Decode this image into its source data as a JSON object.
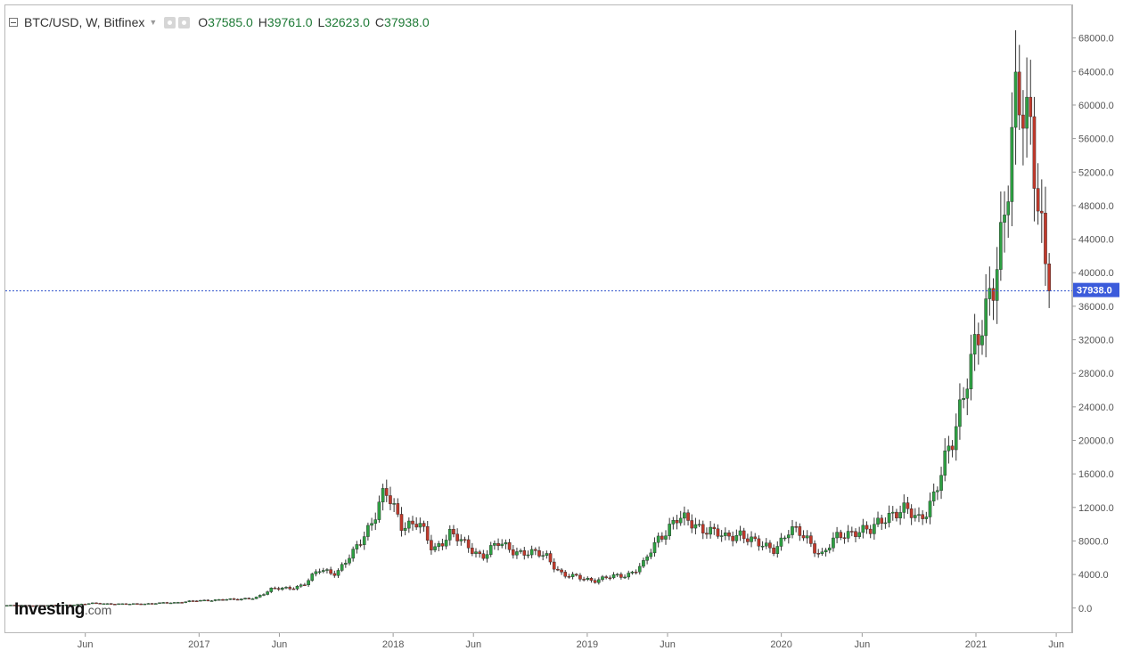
{
  "legend": {
    "symbol": "BTC/USD, W, Bitfinex",
    "open_label": "O",
    "open": "37585.0",
    "high_label": "H",
    "high": "39761.0",
    "low_label": "L",
    "low": "32623.0",
    "close_label": "C",
    "close": "37938.0"
  },
  "logo": {
    "main": "Investing",
    "sub": ".com"
  },
  "colors": {
    "up": "#2ea043",
    "down": "#c0392b",
    "wick": "#333333",
    "last_price_line": "#3355cc",
    "last_price_bg": "#3b5bdb"
  },
  "chart_data": {
    "type": "candlestick",
    "interval": "W",
    "title": "",
    "xlabel": "",
    "ylabel": "",
    "ylim": [
      -3000,
      72000
    ],
    "y_ticks": [
      "68000.0",
      "64000.0",
      "60000.0",
      "56000.0",
      "52000.0",
      "48000.0",
      "44000.0",
      "40000.0",
      "36000.0",
      "32000.0",
      "28000.0",
      "24000.0",
      "20000.0",
      "16000.0",
      "12000.0",
      "8000.0",
      "4000.0",
      "0.0"
    ],
    "x_ticks": [
      "Jun",
      "2017",
      "Jun",
      "2018",
      "Jun",
      "2019",
      "Jun",
      "2020",
      "Jun",
      "2021",
      "Jun"
    ],
    "grid": false,
    "last_price": "37938.0",
    "monthly_closes": [
      {
        "date": "2016-02",
        "close": 420
      },
      {
        "date": "2016-03",
        "close": 415
      },
      {
        "date": "2016-04",
        "close": 450
      },
      {
        "date": "2016-05",
        "close": 530
      },
      {
        "date": "2016-06",
        "close": 670
      },
      {
        "date": "2016-07",
        "close": 620
      },
      {
        "date": "2016-08",
        "close": 575
      },
      {
        "date": "2016-09",
        "close": 610
      },
      {
        "date": "2016-10",
        "close": 700
      },
      {
        "date": "2016-11",
        "close": 740
      },
      {
        "date": "2016-12",
        "close": 960
      },
      {
        "date": "2017-01",
        "close": 970
      },
      {
        "date": "2017-02",
        "close": 1190
      },
      {
        "date": "2017-03",
        "close": 1080
      },
      {
        "date": "2017-04",
        "close": 1350
      },
      {
        "date": "2017-05",
        "close": 2300
      },
      {
        "date": "2017-06",
        "close": 2480
      },
      {
        "date": "2017-07",
        "close": 2870
      },
      {
        "date": "2017-08",
        "close": 4700
      },
      {
        "date": "2017-09",
        "close": 4340
      },
      {
        "date": "2017-10",
        "close": 6450
      },
      {
        "date": "2017-11",
        "close": 10000
      },
      {
        "date": "2017-12",
        "close": 13800
      },
      {
        "date": "2018-01",
        "close": 10200
      },
      {
        "date": "2018-02",
        "close": 10300
      },
      {
        "date": "2018-03",
        "close": 6900
      },
      {
        "date": "2018-04",
        "close": 9200
      },
      {
        "date": "2018-05",
        "close": 7500
      },
      {
        "date": "2018-06",
        "close": 6400
      },
      {
        "date": "2018-07",
        "close": 7700
      },
      {
        "date": "2018-08",
        "close": 7000
      },
      {
        "date": "2018-09",
        "close": 6600
      },
      {
        "date": "2018-10",
        "close": 6300
      },
      {
        "date": "2018-11",
        "close": 4000
      },
      {
        "date": "2018-12",
        "close": 3700
      },
      {
        "date": "2019-01",
        "close": 3450
      },
      {
        "date": "2019-02",
        "close": 3800
      },
      {
        "date": "2019-03",
        "close": 4100
      },
      {
        "date": "2019-04",
        "close": 5300
      },
      {
        "date": "2019-05",
        "close": 8600
      },
      {
        "date": "2019-06",
        "close": 10800
      },
      {
        "date": "2019-07",
        "close": 10100
      },
      {
        "date": "2019-08",
        "close": 9600
      },
      {
        "date": "2019-09",
        "close": 8300
      },
      {
        "date": "2019-10",
        "close": 9200
      },
      {
        "date": "2019-11",
        "close": 7600
      },
      {
        "date": "2019-12",
        "close": 7200
      },
      {
        "date": "2020-01",
        "close": 9350
      },
      {
        "date": "2020-02",
        "close": 8550
      },
      {
        "date": "2020-03",
        "close": 6400
      },
      {
        "date": "2020-04",
        "close": 8600
      },
      {
        "date": "2020-05",
        "close": 9450
      },
      {
        "date": "2020-06",
        "close": 9140
      },
      {
        "date": "2020-07",
        "close": 11350
      },
      {
        "date": "2020-08",
        "close": 11650
      },
      {
        "date": "2020-09",
        "close": 10780
      },
      {
        "date": "2020-10",
        "close": 13800
      },
      {
        "date": "2020-11",
        "close": 19700
      },
      {
        "date": "2020-12",
        "close": 29000
      },
      {
        "date": "2021-01",
        "close": 33100
      },
      {
        "date": "2021-02",
        "close": 45200
      },
      {
        "date": "2021-03",
        "close": 58800
      },
      {
        "date": "2021-04",
        "close": 57700
      },
      {
        "date": "2021-05",
        "close": 37938
      }
    ]
  }
}
